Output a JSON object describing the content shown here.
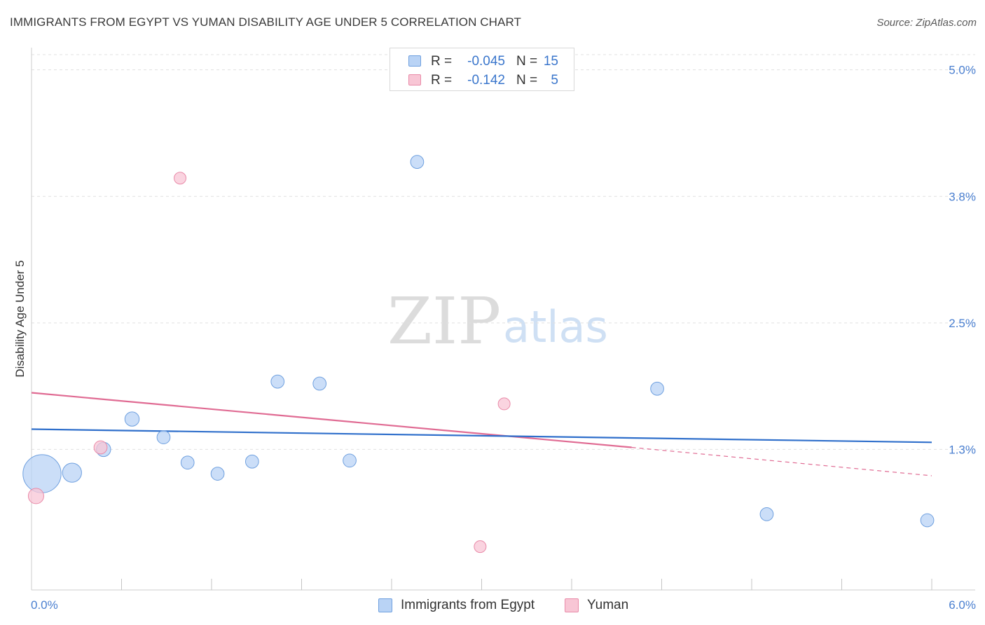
{
  "title": "IMMIGRANTS FROM EGYPT VS YUMAN DISABILITY AGE UNDER 5 CORRELATION CHART",
  "source": "Source: ZipAtlas.com",
  "watermark": {
    "zip": "ZIP",
    "atlas": "atlas"
  },
  "colors": {
    "egypt_fill": "#b9d3f5",
    "egypt_stroke": "#6fa0df",
    "egypt_line": "#2f6fcb",
    "yuman_fill": "#f8c6d5",
    "yuman_stroke": "#e98aa8",
    "yuman_line": "#e06b93",
    "grid": "#e0e0e0",
    "axis_text": "#4a7fd0"
  },
  "legend": {
    "rows": [
      {
        "r_label": "R =",
        "r_value": "-0.045",
        "n_label": "N =",
        "n_value": "15"
      },
      {
        "r_label": "R =",
        "r_value": "-0.142",
        "n_label": "N =",
        "n_value": "5"
      }
    ]
  },
  "chart_data": {
    "type": "scatter",
    "title": "IMMIGRANTS FROM EGYPT VS YUMAN DISABILITY AGE UNDER 5 CORRELATION CHART",
    "xlabel": "",
    "ylabel": "Disability Age Under 5",
    "xlim": [
      0.0,
      6.0
    ],
    "ylim": [
      0.0,
      5.15
    ],
    "x_tick_labels": [
      "0.0%",
      "6.0%"
    ],
    "y_ticks": [
      1.25,
      2.5,
      3.75,
      5.0
    ],
    "y_tick_labels": [
      "1.3%",
      "2.5%",
      "3.8%",
      "5.0%"
    ],
    "grid": true,
    "legend_position": "bottom",
    "series": [
      {
        "name": "Immigrants from Egypt",
        "r": -0.045,
        "n": 15,
        "points": [
          {
            "x": 0.07,
            "y": 1.01,
            "size": 3.2
          },
          {
            "x": 0.27,
            "y": 1.02,
            "size": 1.6
          },
          {
            "x": 0.48,
            "y": 1.25,
            "size": 1.2
          },
          {
            "x": 0.67,
            "y": 1.55,
            "size": 1.2
          },
          {
            "x": 0.88,
            "y": 1.37,
            "size": 1.1
          },
          {
            "x": 1.04,
            "y": 1.12,
            "size": 1.1
          },
          {
            "x": 1.24,
            "y": 1.01,
            "size": 1.1
          },
          {
            "x": 1.47,
            "y": 1.13,
            "size": 1.1
          },
          {
            "x": 1.64,
            "y": 1.92,
            "size": 1.1
          },
          {
            "x": 1.92,
            "y": 1.9,
            "size": 1.1
          },
          {
            "x": 2.12,
            "y": 1.14,
            "size": 1.1
          },
          {
            "x": 2.57,
            "y": 4.09,
            "size": 1.1
          },
          {
            "x": 4.17,
            "y": 1.85,
            "size": 1.1
          },
          {
            "x": 4.9,
            "y": 0.61,
            "size": 1.1
          },
          {
            "x": 5.97,
            "y": 0.55,
            "size": 1.1
          }
        ],
        "trend": {
          "x": [
            0.0,
            6.0
          ],
          "y": [
            1.45,
            1.32
          ]
        }
      },
      {
        "name": "Yuman",
        "r": -0.142,
        "n": 5,
        "points": [
          {
            "x": 0.03,
            "y": 0.79,
            "size": 1.3
          },
          {
            "x": 0.46,
            "y": 1.27,
            "size": 1.1
          },
          {
            "x": 0.99,
            "y": 3.93,
            "size": 1.0
          },
          {
            "x": 2.99,
            "y": 0.29,
            "size": 1.0
          },
          {
            "x": 3.15,
            "y": 1.7,
            "size": 1.0
          }
        ],
        "trend": {
          "x": [
            0.0,
            4.0
          ],
          "y": [
            1.81,
            1.27
          ]
        },
        "trend_extension": {
          "x": [
            4.0,
            6.0
          ],
          "y": [
            1.27,
            0.99
          ]
        }
      }
    ]
  }
}
